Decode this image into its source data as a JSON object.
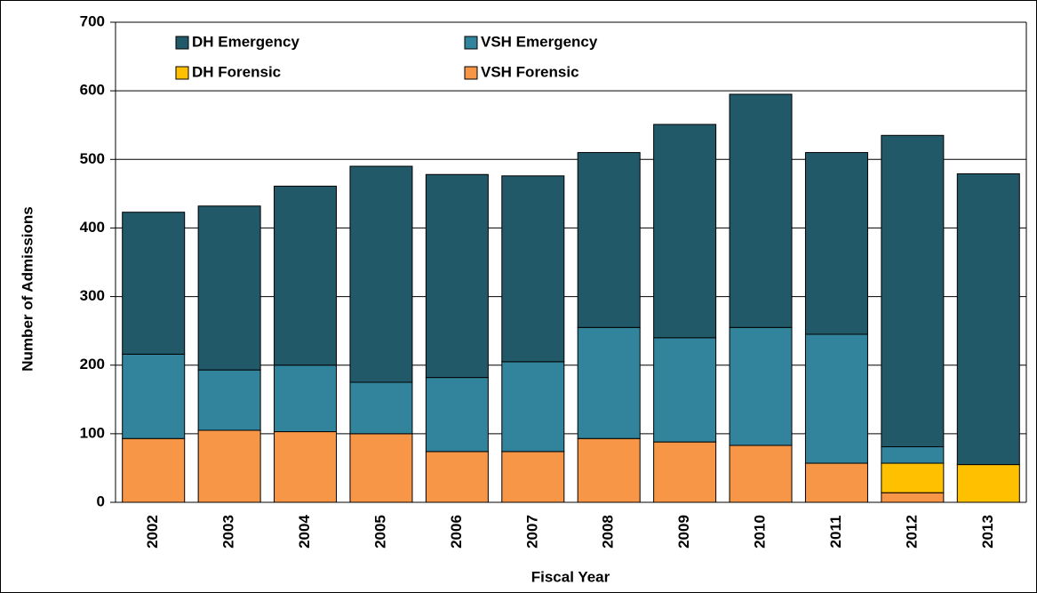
{
  "chart_data": {
    "type": "stacked-bar",
    "x_label": "Fiscal Year",
    "y_label": "Number of Admissions",
    "categories": [
      "2002",
      "2003",
      "2004",
      "2005",
      "2006",
      "2007",
      "2008",
      "2009",
      "2010",
      "2011",
      "2012",
      "2013"
    ],
    "series": [
      {
        "name": "DH Emergency",
        "color": "#215968",
        "values": [
          207,
          239,
          261,
          315,
          296,
          271,
          255,
          311,
          340,
          265,
          454,
          424
        ]
      },
      {
        "name": "VSH Emergency",
        "color": "#31849b",
        "values": [
          123,
          88,
          97,
          75,
          108,
          131,
          162,
          152,
          172,
          188,
          24,
          0
        ]
      },
      {
        "name": "DH Forensic",
        "color": "#ffc000",
        "values": [
          0,
          0,
          0,
          0,
          0,
          0,
          0,
          0,
          0,
          0,
          43,
          55
        ]
      },
      {
        "name": "VSH Forensic",
        "color": "#f79646",
        "values": [
          93,
          105,
          103,
          100,
          74,
          74,
          93,
          88,
          83,
          57,
          14,
          0
        ]
      }
    ],
    "ylim": [
      0,
      700
    ],
    "yticks": [
      0,
      100,
      200,
      300,
      400,
      500,
      600,
      700
    ],
    "grid": true
  }
}
